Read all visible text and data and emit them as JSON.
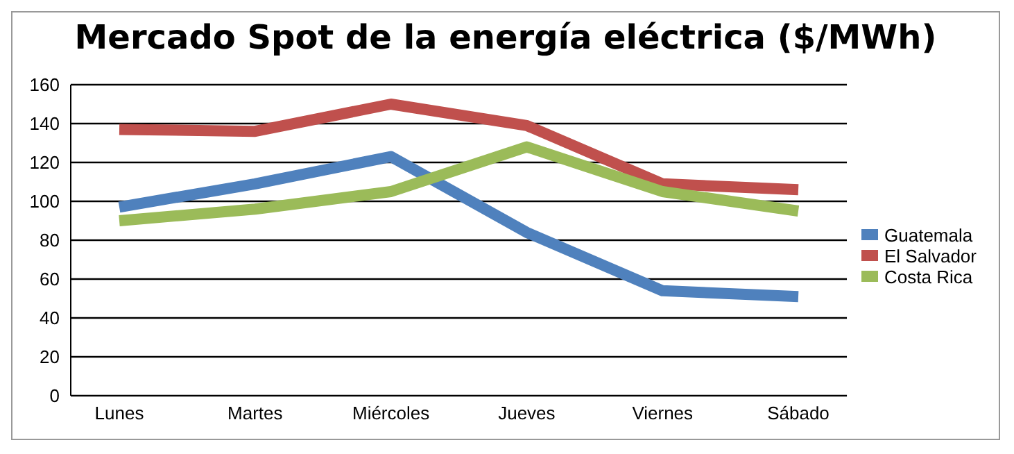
{
  "chart_data": {
    "type": "line",
    "title": "Mercado Spot de la energía eléctrica ($/MWh)",
    "categories": [
      "Lunes",
      "Martes",
      "Miércoles",
      "Jueves",
      "Viernes",
      "Sábado"
    ],
    "series": [
      {
        "name": "Guatemala",
        "color": "#4f81bd",
        "values": [
          97,
          109,
          123,
          84,
          54,
          51
        ]
      },
      {
        "name": "El Salvador",
        "color": "#c0504d",
        "values": [
          137,
          136,
          150,
          139,
          109,
          106
        ]
      },
      {
        "name": "Costa Rica",
        "color": "#9bbb59",
        "values": [
          90,
          96,
          105,
          128,
          105,
          95
        ]
      }
    ],
    "ylim": [
      0,
      160
    ],
    "yticks": [
      0,
      20,
      40,
      60,
      80,
      100,
      120,
      140,
      160
    ],
    "grid": "y",
    "legend": "right",
    "marker": "none",
    "line_style": "solid"
  }
}
